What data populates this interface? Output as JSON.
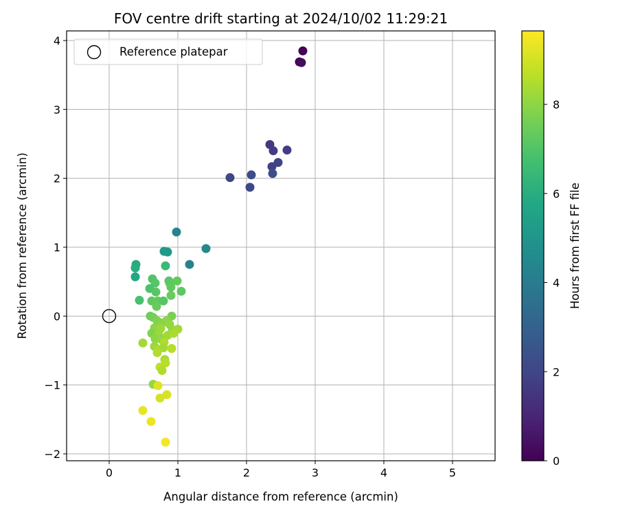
{
  "chart_data": {
    "type": "scatter",
    "title": "FOV centre drift starting at 2024/10/02 11:29:21",
    "xlabel": "Angular distance from reference (arcmin)",
    "ylabel": "Rotation from reference (arcmin)",
    "xlim": [
      -0.62,
      5.62
    ],
    "ylim": [
      -2.1,
      4.14
    ],
    "x_ticks": [
      0,
      1,
      2,
      3,
      4,
      5
    ],
    "y_ticks": [
      -2,
      -1,
      0,
      1,
      2,
      3,
      4
    ],
    "x_tick_labels": [
      "0",
      "1",
      "2",
      "3",
      "4",
      "5"
    ],
    "y_tick_labels": [
      "−2",
      "−1",
      "0",
      "1",
      "2",
      "3",
      "4"
    ],
    "grid": true,
    "legend": {
      "position": "upper-left",
      "entries": [
        "Reference platepar"
      ]
    },
    "reference_point": {
      "x": 0.0,
      "y": 0.0,
      "label": "Reference platepar"
    },
    "colorbar": {
      "label": "Hours from first FF file",
      "colormap": "viridis",
      "range": [
        0,
        9.65
      ],
      "ticks": [
        0,
        2,
        4,
        6,
        8
      ],
      "tick_labels": [
        "0",
        "2",
        "4",
        "6",
        "8"
      ]
    },
    "points": [
      {
        "x": 2.82,
        "y": 3.85,
        "t": 0.05
      },
      {
        "x": 2.77,
        "y": 3.69,
        "t": 0.15
      },
      {
        "x": 2.8,
        "y": 3.68,
        "t": 0.25
      },
      {
        "x": 1.76,
        "y": 2.01,
        "t": 2.0
      },
      {
        "x": 2.05,
        "y": 1.87,
        "t": 2.1
      },
      {
        "x": 2.07,
        "y": 2.05,
        "t": 2.2
      },
      {
        "x": 2.34,
        "y": 2.49,
        "t": 1.6
      },
      {
        "x": 2.39,
        "y": 2.4,
        "t": 1.7
      },
      {
        "x": 2.37,
        "y": 2.17,
        "t": 1.8
      },
      {
        "x": 2.46,
        "y": 2.23,
        "t": 1.9
      },
      {
        "x": 2.38,
        "y": 2.07,
        "t": 2.3
      },
      {
        "x": 2.59,
        "y": 2.41,
        "t": 1.75
      },
      {
        "x": 0.98,
        "y": 1.22,
        "t": 4.3
      },
      {
        "x": 1.41,
        "y": 0.98,
        "t": 4.5
      },
      {
        "x": 1.17,
        "y": 0.75,
        "t": 4.2
      },
      {
        "x": 0.8,
        "y": 0.94,
        "t": 5.1
      },
      {
        "x": 0.85,
        "y": 0.93,
        "t": 5.2
      },
      {
        "x": 0.39,
        "y": 0.75,
        "t": 5.9
      },
      {
        "x": 0.38,
        "y": 0.7,
        "t": 6.0
      },
      {
        "x": 0.38,
        "y": 0.57,
        "t": 5.8
      },
      {
        "x": 0.82,
        "y": 0.73,
        "t": 6.5
      },
      {
        "x": 0.44,
        "y": 0.23,
        "t": 6.8
      },
      {
        "x": 0.63,
        "y": 0.54,
        "t": 7.0
      },
      {
        "x": 0.67,
        "y": 0.48,
        "t": 7.1
      },
      {
        "x": 0.87,
        "y": 0.51,
        "t": 7.0
      },
      {
        "x": 0.88,
        "y": 0.48,
        "t": 7.2
      },
      {
        "x": 0.9,
        "y": 0.42,
        "t": 7.3
      },
      {
        "x": 0.59,
        "y": 0.4,
        "t": 6.9
      },
      {
        "x": 0.68,
        "y": 0.35,
        "t": 7.1
      },
      {
        "x": 0.99,
        "y": 0.51,
        "t": 7.3
      },
      {
        "x": 1.05,
        "y": 0.36,
        "t": 7.2
      },
      {
        "x": 0.9,
        "y": 0.3,
        "t": 7.4
      },
      {
        "x": 0.62,
        "y": 0.22,
        "t": 7.2
      },
      {
        "x": 0.71,
        "y": 0.22,
        "t": 7.3
      },
      {
        "x": 0.79,
        "y": 0.22,
        "t": 7.1
      },
      {
        "x": 0.69,
        "y": 0.14,
        "t": 7.4
      },
      {
        "x": 0.6,
        "y": 0.0,
        "t": 7.5
      },
      {
        "x": 0.64,
        "y": -0.02,
        "t": 7.6
      },
      {
        "x": 0.91,
        "y": 0.0,
        "t": 7.7
      },
      {
        "x": 0.7,
        "y": -0.07,
        "t": 7.8
      },
      {
        "x": 0.77,
        "y": -0.1,
        "t": 7.9
      },
      {
        "x": 0.83,
        "y": -0.07,
        "t": 8.0
      },
      {
        "x": 0.88,
        "y": -0.12,
        "t": 8.1
      },
      {
        "x": 0.66,
        "y": -0.17,
        "t": 8.0
      },
      {
        "x": 0.75,
        "y": -0.18,
        "t": 8.2
      },
      {
        "x": 0.92,
        "y": -0.2,
        "t": 8.1
      },
      {
        "x": 1.0,
        "y": -0.19,
        "t": 8.3
      },
      {
        "x": 0.62,
        "y": -0.25,
        "t": 7.8
      },
      {
        "x": 0.72,
        "y": -0.27,
        "t": 8.2
      },
      {
        "x": 0.85,
        "y": -0.28,
        "t": 8.3
      },
      {
        "x": 0.94,
        "y": -0.25,
        "t": 8.4
      },
      {
        "x": 0.67,
        "y": -0.33,
        "t": 8.0
      },
      {
        "x": 0.76,
        "y": -0.34,
        "t": 8.1
      },
      {
        "x": 0.8,
        "y": -0.38,
        "t": 8.5
      },
      {
        "x": 0.49,
        "y": -0.39,
        "t": 8.3
      },
      {
        "x": 0.66,
        "y": -0.44,
        "t": 8.2
      },
      {
        "x": 0.71,
        "y": -0.48,
        "t": 8.4
      },
      {
        "x": 0.79,
        "y": -0.46,
        "t": 8.3
      },
      {
        "x": 0.91,
        "y": -0.47,
        "t": 8.6
      },
      {
        "x": 0.7,
        "y": -0.53,
        "t": 8.5
      },
      {
        "x": 0.81,
        "y": -0.63,
        "t": 8.4
      },
      {
        "x": 0.82,
        "y": -0.68,
        "t": 8.6
      },
      {
        "x": 0.74,
        "y": -0.74,
        "t": 8.7
      },
      {
        "x": 0.77,
        "y": -0.79,
        "t": 8.5
      },
      {
        "x": 0.64,
        "y": -0.99,
        "t": 8.1
      },
      {
        "x": 0.71,
        "y": -1.01,
        "t": 9.2
      },
      {
        "x": 0.84,
        "y": -1.14,
        "t": 9.1
      },
      {
        "x": 0.74,
        "y": -1.19,
        "t": 9.0
      },
      {
        "x": 0.49,
        "y": -1.37,
        "t": 9.3
      },
      {
        "x": 0.61,
        "y": -1.53,
        "t": 9.4
      },
      {
        "x": 0.82,
        "y": -1.83,
        "t": 9.5
      }
    ]
  }
}
